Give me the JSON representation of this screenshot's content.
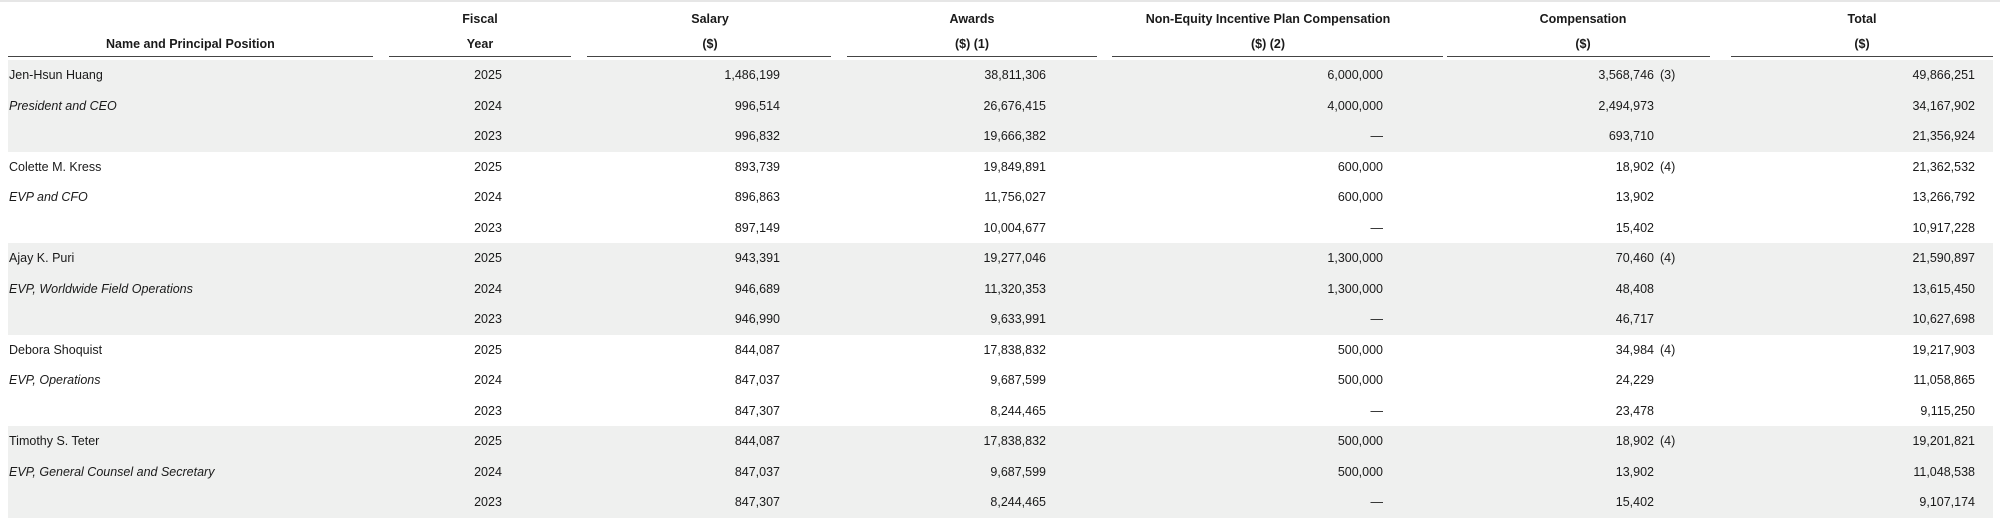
{
  "headers": {
    "name": "Name and Principal Position",
    "year_top": "Fiscal",
    "year_bottom": "Year",
    "salary_top": "Salary",
    "salary_bottom": "($)",
    "awards_top": "Awards",
    "awards_bottom": "($) (1)",
    "nonequity_top": "Non-Equity Incentive Plan Compensation",
    "nonequity_bottom": "($) (2)",
    "comp_top": "Compensation",
    "comp_bottom": "($)",
    "total_top": "Total",
    "total_bottom": "($)"
  },
  "rows": [
    {
      "name": "Jen-Hsun Huang",
      "italic": false,
      "year": "2025",
      "salary": "1,486,199",
      "awards": "38,811,306",
      "nonequity": "6,000,000",
      "comp": "3,568,746",
      "footnote": "(3)",
      "total": "49,866,251"
    },
    {
      "name": "President and CEO",
      "italic": true,
      "year": "2024",
      "salary": "996,514",
      "awards": "26,676,415",
      "nonequity": "4,000,000",
      "comp": "2,494,973",
      "footnote": "",
      "total": "34,167,902"
    },
    {
      "name": "",
      "italic": false,
      "year": "2023",
      "salary": "996,832",
      "awards": "19,666,382",
      "nonequity": "—",
      "comp": "693,710",
      "footnote": "",
      "total": "21,356,924"
    },
    {
      "name": "Colette M. Kress",
      "italic": false,
      "year": "2025",
      "salary": "893,739",
      "awards": "19,849,891",
      "nonequity": "600,000",
      "comp": "18,902",
      "footnote": "(4)",
      "total": "21,362,532"
    },
    {
      "name": "EVP and CFO",
      "italic": true,
      "year": "2024",
      "salary": "896,863",
      "awards": "11,756,027",
      "nonequity": "600,000",
      "comp": "13,902",
      "footnote": "",
      "total": "13,266,792"
    },
    {
      "name": "",
      "italic": false,
      "year": "2023",
      "salary": "897,149",
      "awards": "10,004,677",
      "nonequity": "—",
      "comp": "15,402",
      "footnote": "",
      "total": "10,917,228"
    },
    {
      "name": "Ajay K. Puri",
      "italic": false,
      "year": "2025",
      "salary": "943,391",
      "awards": "19,277,046",
      "nonequity": "1,300,000",
      "comp": "70,460",
      "footnote": "(4)",
      "total": "21,590,897"
    },
    {
      "name": "EVP, Worldwide Field Operations",
      "italic": true,
      "year": "2024",
      "salary": "946,689",
      "awards": "11,320,353",
      "nonequity": "1,300,000",
      "comp": "48,408",
      "footnote": "",
      "total": "13,615,450"
    },
    {
      "name": "",
      "italic": false,
      "year": "2023",
      "salary": "946,990",
      "awards": "9,633,991",
      "nonequity": "—",
      "comp": "46,717",
      "footnote": "",
      "total": "10,627,698"
    },
    {
      "name": "Debora Shoquist",
      "italic": false,
      "year": "2025",
      "salary": "844,087",
      "awards": "17,838,832",
      "nonequity": "500,000",
      "comp": "34,984",
      "footnote": "(4)",
      "total": "19,217,903"
    },
    {
      "name": "EVP, Operations",
      "italic": true,
      "year": "2024",
      "salary": "847,037",
      "awards": "9,687,599",
      "nonequity": "500,000",
      "comp": "24,229",
      "footnote": "",
      "total": "11,058,865"
    },
    {
      "name": "",
      "italic": false,
      "year": "2023",
      "salary": "847,307",
      "awards": "8,244,465",
      "nonequity": "—",
      "comp": "23,478",
      "footnote": "",
      "total": "9,115,250"
    },
    {
      "name": "Timothy S. Teter",
      "italic": false,
      "year": "2025",
      "salary": "844,087",
      "awards": "17,838,832",
      "nonequity": "500,000",
      "comp": "18,902",
      "footnote": "(4)",
      "total": "19,201,821"
    },
    {
      "name": "EVP, General Counsel and Secretary",
      "italic": true,
      "year": "2024",
      "salary": "847,037",
      "awards": "9,687,599",
      "nonequity": "500,000",
      "comp": "13,902",
      "footnote": "",
      "total": "11,048,538"
    },
    {
      "name": "",
      "italic": false,
      "year": "2023",
      "salary": "847,307",
      "awards": "8,244,465",
      "nonequity": "—",
      "comp": "15,402",
      "footnote": "",
      "total": "9,107,174"
    }
  ]
}
